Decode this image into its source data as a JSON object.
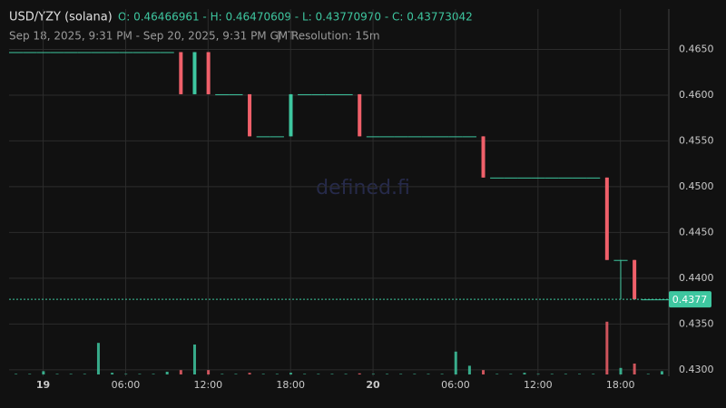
{
  "chart_data": {
    "type": "candlestick",
    "title": "USD/YZY (solana)",
    "ohlc_summary": "O: 0.46466961 - H: 0.46470609 - L: 0.43770970 - C: 0.43773042",
    "subtitle": "Sep 18, 2025, 9:31 PM - Sep 20, 2025, 9:31 PM GMT",
    "resolution": "Resolution: 15m",
    "watermark": "defined.fi",
    "up_color": "#3ec7a0",
    "down_color": "#f0606a",
    "open": [
      0.4647,
      0.4647,
      0.4647,
      0.4647,
      0.4647,
      0.4647,
      0.4647,
      0.4647,
      0.4647,
      0.4647,
      0.4647,
      0.4647,
      0.4647,
      0.4601,
      0.4647,
      0.4601,
      0.4601,
      0.4601,
      0.4555,
      0.4555,
      0.4555,
      0.4601,
      0.4601,
      0.4601,
      0.4601,
      0.4601,
      0.4555,
      0.4555,
      0.4555,
      0.4555,
      0.4555,
      0.4555,
      0.4555,
      0.4555,
      0.4555,
      0.451,
      0.451,
      0.451,
      0.451,
      0.451,
      0.451,
      0.451,
      0.451,
      0.451,
      0.442,
      0.442,
      0.4377,
      0.4377
    ],
    "high": [
      0.4647,
      0.4647,
      0.4647,
      0.4647,
      0.4647,
      0.4647,
      0.4647,
      0.4647,
      0.4647,
      0.4647,
      0.4647,
      0.4647,
      0.4647,
      0.4647,
      0.4647,
      0.4601,
      0.4601,
      0.4601,
      0.4555,
      0.4555,
      0.4601,
      0.4601,
      0.4601,
      0.4601,
      0.4601,
      0.4601,
      0.4555,
      0.4555,
      0.4555,
      0.4555,
      0.4555,
      0.4555,
      0.4555,
      0.4555,
      0.4555,
      0.451,
      0.451,
      0.451,
      0.451,
      0.451,
      0.451,
      0.451,
      0.451,
      0.451,
      0.442,
      0.442,
      0.4377,
      0.4377
    ],
    "low": [
      0.4647,
      0.4647,
      0.4647,
      0.4647,
      0.4647,
      0.4647,
      0.4647,
      0.4647,
      0.4647,
      0.4647,
      0.4647,
      0.4647,
      0.4601,
      0.4601,
      0.4601,
      0.4601,
      0.4601,
      0.4555,
      0.4555,
      0.4555,
      0.4555,
      0.4601,
      0.4601,
      0.4601,
      0.4601,
      0.4555,
      0.4555,
      0.4555,
      0.4555,
      0.4555,
      0.4555,
      0.4555,
      0.4555,
      0.4555,
      0.451,
      0.451,
      0.451,
      0.451,
      0.451,
      0.451,
      0.451,
      0.451,
      0.451,
      0.442,
      0.4377,
      0.4377,
      0.4377,
      0.4377
    ],
    "close": [
      0.4647,
      0.4647,
      0.4647,
      0.4647,
      0.4647,
      0.4647,
      0.4647,
      0.4647,
      0.4647,
      0.4647,
      0.4647,
      0.4647,
      0.4601,
      0.4647,
      0.4601,
      0.4601,
      0.4601,
      0.4555,
      0.4555,
      0.4555,
      0.4601,
      0.4601,
      0.4601,
      0.4601,
      0.4601,
      0.4555,
      0.4555,
      0.4555,
      0.4555,
      0.4555,
      0.4555,
      0.4555,
      0.4555,
      0.4555,
      0.451,
      0.451,
      0.451,
      0.451,
      0.451,
      0.451,
      0.451,
      0.451,
      0.451,
      0.442,
      0.442,
      0.4377,
      0.4377,
      0.4377
    ],
    "volumes": [
      1,
      1,
      6,
      1,
      1,
      1,
      58,
      3,
      1,
      1,
      1,
      5,
      8,
      55,
      8,
      1,
      1,
      3,
      1,
      1,
      3,
      1,
      1,
      1,
      1,
      2,
      1,
      1,
      1,
      1,
      1,
      1,
      42,
      16,
      8,
      1,
      1,
      3,
      1,
      1,
      1,
      1,
      1,
      97,
      12,
      20,
      1,
      6
    ],
    "volume_lim": [
      0,
      100
    ],
    "xlim": [
      0,
      48
    ],
    "xticks": [
      {
        "value": 2.48,
        "label": "19"
      },
      {
        "value": 8.48,
        "label": "06:00"
      },
      {
        "value": 14.48,
        "label": "12:00"
      },
      {
        "value": 20.48,
        "label": "18:00"
      },
      {
        "value": 26.48,
        "label": "20"
      },
      {
        "value": 32.48,
        "label": "06:00"
      },
      {
        "value": 38.48,
        "label": "12:00"
      },
      {
        "value": 44.48,
        "label": "18:00"
      }
    ],
    "ylim": [
      0.4293,
      0.4694
    ],
    "yticks": [
      {
        "value": 0.43,
        "label": "0.4300"
      },
      {
        "value": 0.435,
        "label": "0.4350"
      },
      {
        "value": 0.44,
        "label": "0.4400"
      },
      {
        "value": 0.445,
        "label": "0.4450"
      },
      {
        "value": 0.45,
        "label": "0.4500"
      },
      {
        "value": 0.455,
        "label": "0.4550"
      },
      {
        "value": 0.46,
        "label": "0.4600"
      },
      {
        "value": 0.465,
        "label": "0.4650"
      }
    ],
    "last_price": 0.4377,
    "grid": true
  }
}
